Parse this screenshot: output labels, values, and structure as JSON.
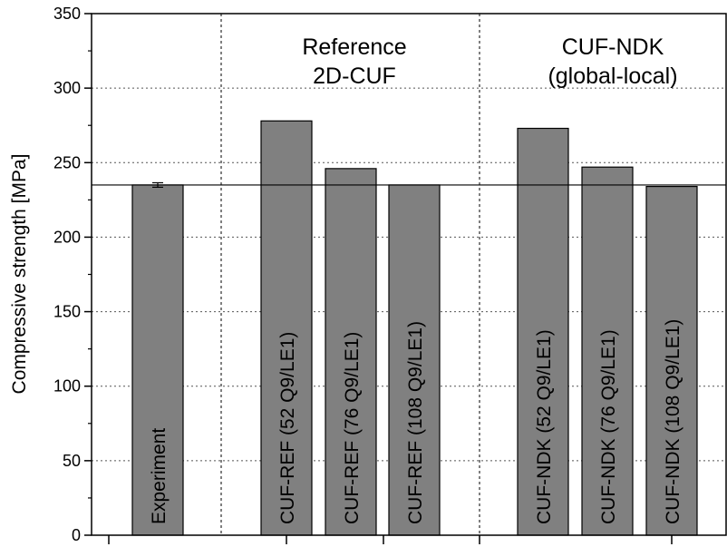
{
  "chart_data": {
    "type": "bar",
    "ylabel": "Compressive strength [MPa]",
    "ylim": [
      0,
      350
    ],
    "yticks": [
      0,
      50,
      100,
      150,
      200,
      250,
      300,
      350
    ],
    "grid": "horizontal dotted",
    "categories": [
      "Experiment",
      "CUF-REF (52 Q9/LE1)",
      "CUF-REF (76 Q9/LE1)",
      "CUF-REF (108 Q9/LE1)",
      "CUF-NDK (52 Q9/LE1)",
      "CUF-NDK (76 Q9/LE1)",
      "CUF-NDK (108 Q9/LE1)"
    ],
    "values": [
      235,
      278,
      246,
      235,
      273,
      247,
      234
    ],
    "error": [
      1.5,
      null,
      null,
      null,
      null,
      null,
      null
    ],
    "reference_line": 235,
    "groups": [
      {
        "label_line1": "Reference",
        "label_line2": "2D-CUF"
      },
      {
        "label_line1": "CUF-NDK",
        "label_line2": "(global-local)"
      }
    ],
    "colors": {
      "bar": "#808080",
      "edge": "#000000",
      "grid": "#555555"
    }
  }
}
